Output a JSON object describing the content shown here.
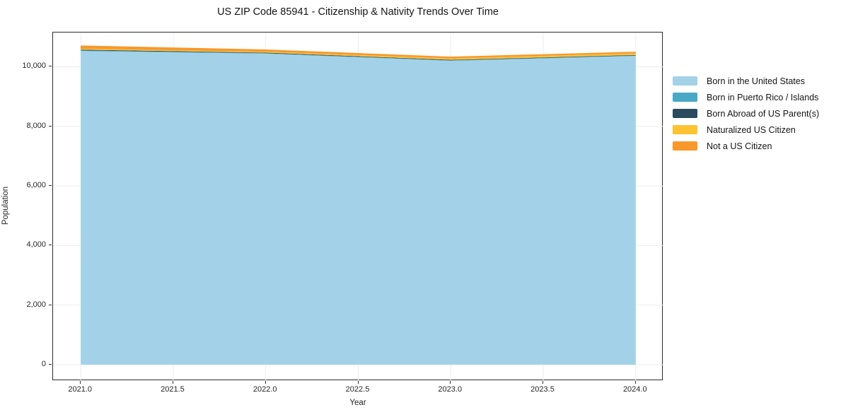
{
  "chart_data": {
    "type": "area",
    "stacked": true,
    "title": "US ZIP Code 85941 - Citizenship & Nativity Trends Over Time",
    "xlabel": "Year",
    "ylabel": "Population",
    "x": [
      2021,
      2022,
      2023,
      2024
    ],
    "series": [
      {
        "name": "Born in the United States",
        "color": "#a3d2e8",
        "values": [
          10530,
          10440,
          10200,
          10365
        ]
      },
      {
        "name": "Born in Puerto Rico / Islands",
        "color": "#49a9c5",
        "values": [
          20,
          15,
          15,
          12
        ]
      },
      {
        "name": "Born Abroad of US Parent(s)",
        "color": "#2b4a5e",
        "values": [
          25,
          20,
          20,
          18
        ]
      },
      {
        "name": "Naturalized US Citizen",
        "color": "#fdc330",
        "values": [
          30,
          30,
          45,
          55
        ]
      },
      {
        "name": "Not a US Citizen",
        "color": "#f8982b",
        "values": [
          110,
          75,
          60,
          55
        ]
      }
    ],
    "x_ticks": [
      {
        "value": 2021.0,
        "label": "2021.0"
      },
      {
        "value": 2021.5,
        "label": "2021.5"
      },
      {
        "value": 2022.0,
        "label": "2022.0"
      },
      {
        "value": 2022.5,
        "label": "2022.5"
      },
      {
        "value": 2023.0,
        "label": "2023.0"
      },
      {
        "value": 2023.5,
        "label": "2023.5"
      },
      {
        "value": 2024.0,
        "label": "2024.0"
      }
    ],
    "y_ticks": [
      {
        "value": 0,
        "label": "0"
      },
      {
        "value": 2000,
        "label": "2,000"
      },
      {
        "value": 4000,
        "label": "4,000"
      },
      {
        "value": 6000,
        "label": "6,000"
      },
      {
        "value": 8000,
        "label": "8,000"
      },
      {
        "value": 10000,
        "label": "10,000"
      }
    ],
    "xlim": [
      2020.85,
      2024.15
    ],
    "ylim": [
      -546,
      11150
    ],
    "grid": true,
    "grid_color": "#ededed",
    "spine_color": "#2b2b2b",
    "legend_position": "right-outside"
  }
}
